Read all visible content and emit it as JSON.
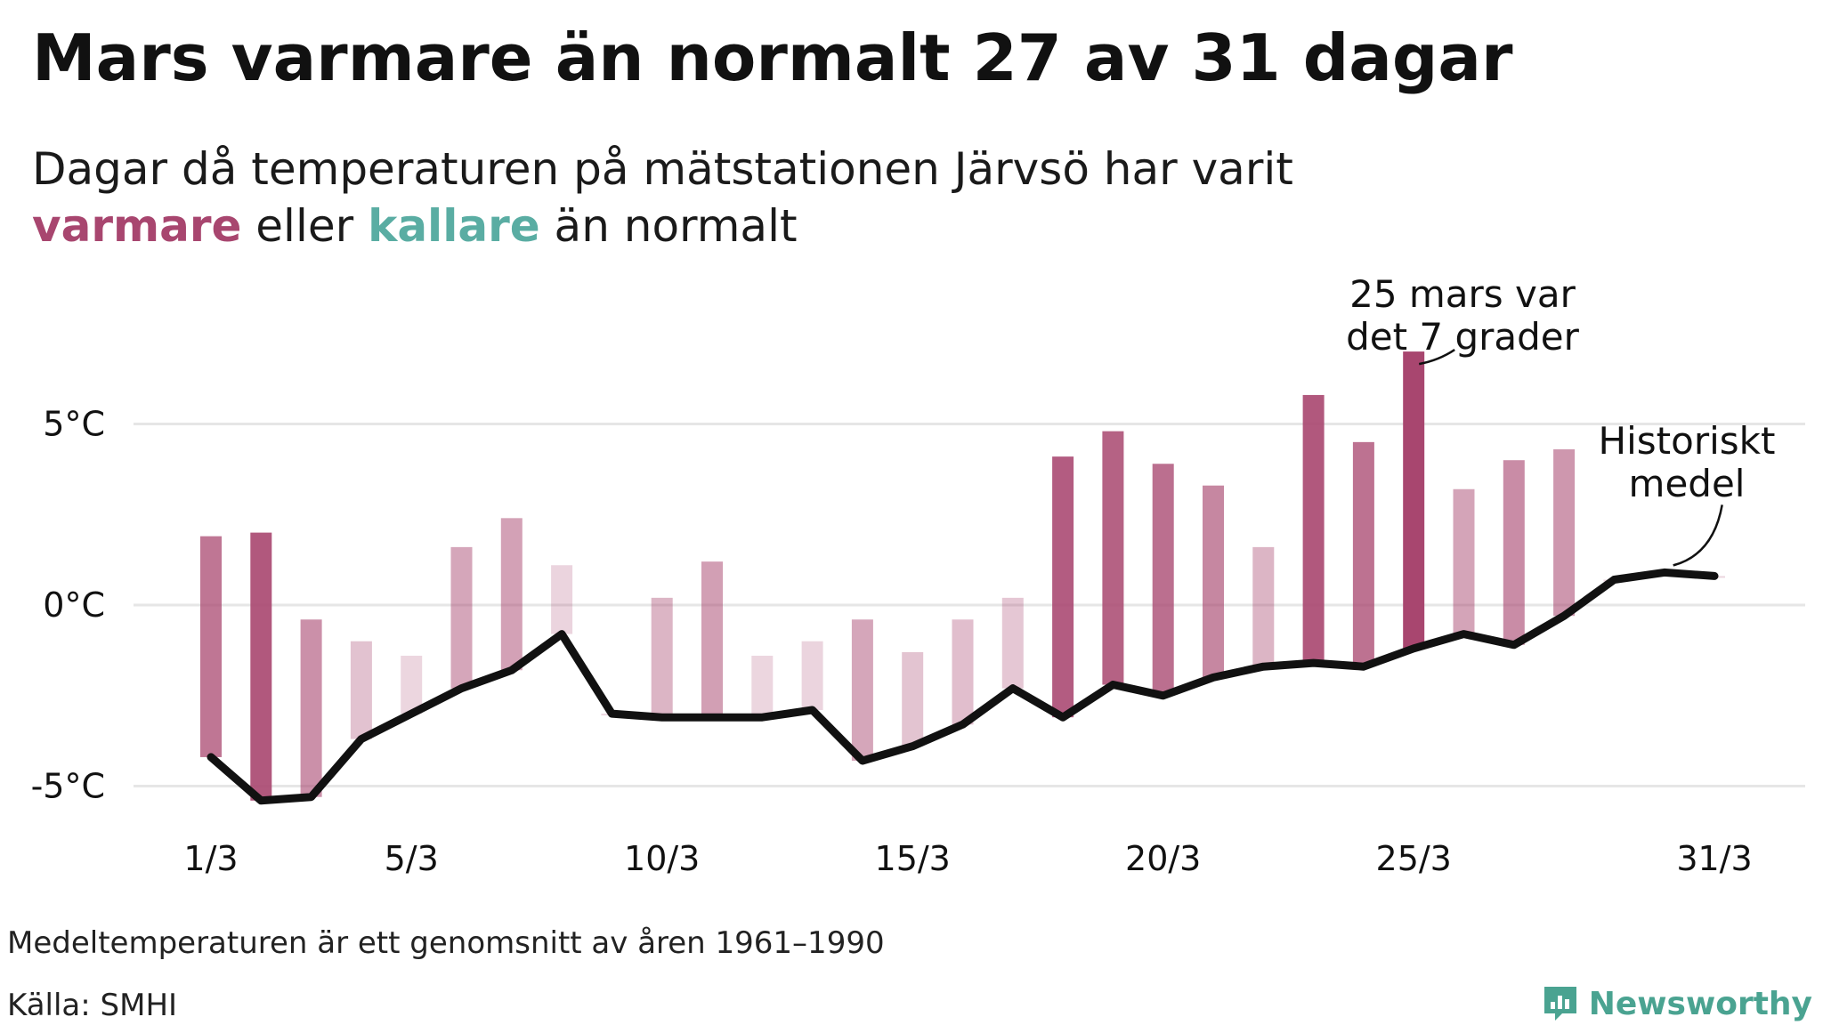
{
  "title": "Mars varmare än normalt 27 av 31 dagar",
  "subtitle": {
    "line1": "Dagar då temperaturen på mätstationen Järvsö har varit",
    "warm_word": "varmare",
    "middle": " eller ",
    "cold_word": "kallare",
    "end": " än normalt"
  },
  "footnote": "Medeltemperaturen är ett genomsnitt av åren 1961–1990",
  "source": "Källa: SMHI",
  "brand": {
    "name": "Newsworthy",
    "icon": "newsworthy-logo-icon"
  },
  "colors": {
    "warm": "#a8466f",
    "cold": "#4fbfb8",
    "line": "#111111",
    "grid": "#e6e6e6"
  },
  "chart_data": {
    "type": "bar",
    "title": "Mars varmare än normalt 27 av 31 dagar",
    "xlabel": "",
    "ylabel": "",
    "ylim": [
      -6,
      8
    ],
    "y_ticks": [
      {
        "value": 5,
        "label": "5°C"
      },
      {
        "value": 0,
        "label": "0°C"
      },
      {
        "value": -5,
        "label": "-5°C"
      }
    ],
    "x_ticks": [
      {
        "day": 1,
        "label": "1/3"
      },
      {
        "day": 5,
        "label": "5/3"
      },
      {
        "day": 10,
        "label": "10/3"
      },
      {
        "day": 15,
        "label": "15/3"
      },
      {
        "day": 20,
        "label": "20/3"
      },
      {
        "day": 25,
        "label": "25/3"
      },
      {
        "day": 31,
        "label": "31/3"
      }
    ],
    "days": [
      1,
      2,
      3,
      4,
      5,
      6,
      7,
      8,
      9,
      10,
      11,
      12,
      13,
      14,
      15,
      16,
      17,
      18,
      19,
      20,
      21,
      22,
      23,
      24,
      25,
      26,
      27,
      28,
      29,
      30,
      31
    ],
    "actual": [
      1.9,
      2.0,
      -0.4,
      -1.0,
      -1.4,
      1.6,
      2.4,
      1.1,
      -3.0,
      0.2,
      1.2,
      -1.4,
      -1.0,
      -0.4,
      -1.3,
      -0.4,
      0.2,
      4.1,
      4.8,
      3.9,
      3.3,
      1.6,
      5.8,
      4.5,
      7.0,
      3.2,
      4.0,
      4.3,
      0.7,
      0.9,
      0.8
    ],
    "normal": [
      -4.2,
      -5.4,
      -5.3,
      -3.7,
      -3.0,
      -2.3,
      -1.8,
      -0.8,
      -3.0,
      -3.1,
      -3.1,
      -3.1,
      -2.9,
      -4.3,
      -3.9,
      -3.3,
      -2.3,
      -3.1,
      -2.2,
      -2.5,
      -2.0,
      -1.7,
      -1.6,
      -1.7,
      -1.2,
      -0.8,
      -1.1,
      -0.3,
      0.7,
      0.9,
      0.8
    ],
    "series": [
      {
        "name": "Temperatur",
        "values": [
          1.9,
          2.0,
          -0.4,
          -1.0,
          -1.4,
          1.6,
          2.4,
          1.1,
          -3.0,
          0.2,
          1.2,
          -1.4,
          -1.0,
          -0.4,
          -1.3,
          -0.4,
          0.2,
          4.1,
          4.8,
          3.9,
          3.3,
          1.6,
          5.8,
          4.5,
          7.0,
          3.2,
          4.0,
          4.3,
          0.7,
          0.9,
          0.8
        ]
      },
      {
        "name": "Historiskt medel",
        "values": [
          -4.2,
          -5.4,
          -5.3,
          -3.7,
          -3.0,
          -2.3,
          -1.8,
          -0.8,
          -3.0,
          -3.1,
          -3.1,
          -3.1,
          -2.9,
          -4.3,
          -3.9,
          -3.3,
          -2.3,
          -3.1,
          -2.2,
          -2.5,
          -2.0,
          -1.7,
          -1.6,
          -1.7,
          -1.2,
          -0.8,
          -1.1,
          -0.3,
          0.7,
          0.9,
          0.8
        ]
      }
    ],
    "annotations": [
      {
        "day": 25,
        "lines": [
          "25 mars var",
          "det 7 grader"
        ]
      },
      {
        "day": 30,
        "lines": [
          "Historiskt",
          "medel"
        ]
      }
    ]
  }
}
